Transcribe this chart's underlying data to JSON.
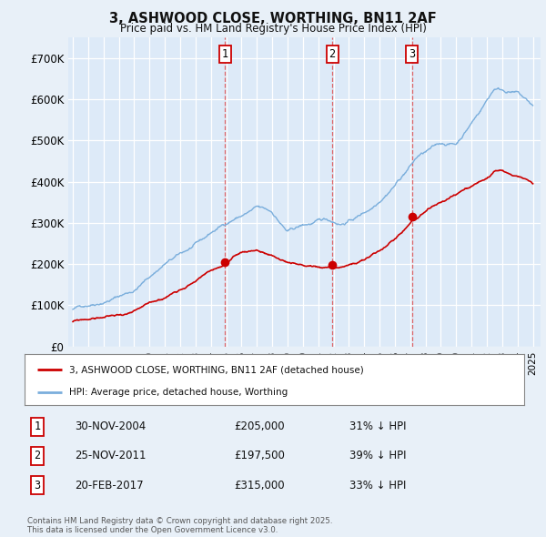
{
  "title": "3, ASHWOOD CLOSE, WORTHING, BN11 2AF",
  "subtitle": "Price paid vs. HM Land Registry's House Price Index (HPI)",
  "ylim": [
    0,
    750000
  ],
  "yticks": [
    0,
    100000,
    200000,
    300000,
    400000,
    500000,
    600000,
    700000
  ],
  "ytick_labels": [
    "£0",
    "£100K",
    "£200K",
    "£300K",
    "£400K",
    "£500K",
    "£600K",
    "£700K"
  ],
  "background_color": "#e8f0f8",
  "plot_bg_color": "#ddeaf8",
  "grid_color": "#ffffff",
  "sale_color": "#cc0000",
  "hpi_color": "#7aaedc",
  "sale_label": "3, ASHWOOD CLOSE, WORTHING, BN11 2AF (detached house)",
  "hpi_label": "HPI: Average price, detached house, Worthing",
  "transactions": [
    {
      "num": 1,
      "date": "30-NOV-2004",
      "price": 205000,
      "hpi_pct": "31% ↓ HPI",
      "x_year": 2004.92
    },
    {
      "num": 2,
      "date": "25-NOV-2011",
      "price": 197500,
      "hpi_pct": "39% ↓ HPI",
      "x_year": 2011.92
    },
    {
      "num": 3,
      "date": "20-FEB-2017",
      "price": 315000,
      "hpi_pct": "33% ↓ HPI",
      "x_year": 2017.13
    }
  ],
  "footer": "Contains HM Land Registry data © Crown copyright and database right 2025.\nThis data is licensed under the Open Government Licence v3.0.",
  "xlim_start": 1994.7,
  "xlim_end": 2025.5
}
